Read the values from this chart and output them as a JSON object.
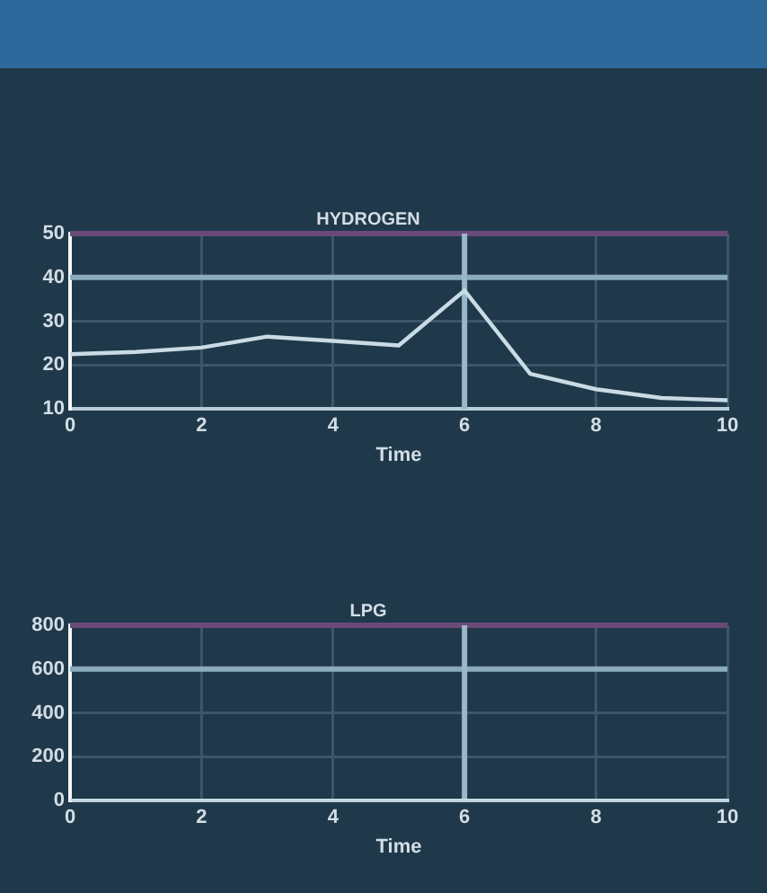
{
  "chart_data": [
    {
      "type": "line",
      "title": "HYDROGEN",
      "xlabel": "Time",
      "x": [
        0,
        1,
        2,
        3,
        4,
        5,
        6,
        7,
        8,
        9,
        10
      ],
      "series": [
        {
          "color": "#c9dbe4",
          "values": [
            22.5,
            23,
            24,
            26.5,
            25.5,
            24.5,
            37,
            18,
            14.5,
            12.5,
            12
          ]
        }
      ],
      "xlim": [
        0,
        10
      ],
      "xticks": [
        0,
        2,
        4,
        6,
        8,
        10
      ],
      "ylim": [
        10,
        50
      ],
      "yticks": [
        10,
        20,
        30,
        40,
        50
      ],
      "grid": true,
      "marker": "none",
      "ref_lines": [
        {
          "axis": "y",
          "value": 50,
          "color": "#6b4a78"
        },
        {
          "axis": "y",
          "value": 40,
          "color": "#8aaabd"
        },
        {
          "axis": "x",
          "value": 6,
          "color": "#9bb8c8"
        }
      ]
    },
    {
      "type": "line",
      "title": "LPG",
      "xlabel": "Time",
      "x": [
        0,
        1,
        2,
        3,
        4,
        5,
        6,
        7,
        8,
        9,
        10
      ],
      "series": [
        {
          "color": "#c9dbe4",
          "values": [
            0,
            0,
            0,
            0,
            0,
            0,
            0,
            0,
            0,
            0,
            0
          ]
        }
      ],
      "xlim": [
        0,
        10
      ],
      "xticks": [
        0,
        2,
        4,
        6,
        8,
        10
      ],
      "ylim": [
        0,
        800
      ],
      "yticks": [
        0,
        200,
        400,
        600,
        800
      ],
      "grid": true,
      "marker": "none",
      "ref_lines": [
        {
          "axis": "y",
          "value": 800,
          "color": "#6b4a78"
        },
        {
          "axis": "y",
          "value": 600,
          "color": "#8aaabd"
        },
        {
          "axis": "x",
          "value": 6,
          "color": "#9bb8c8"
        }
      ]
    }
  ]
}
